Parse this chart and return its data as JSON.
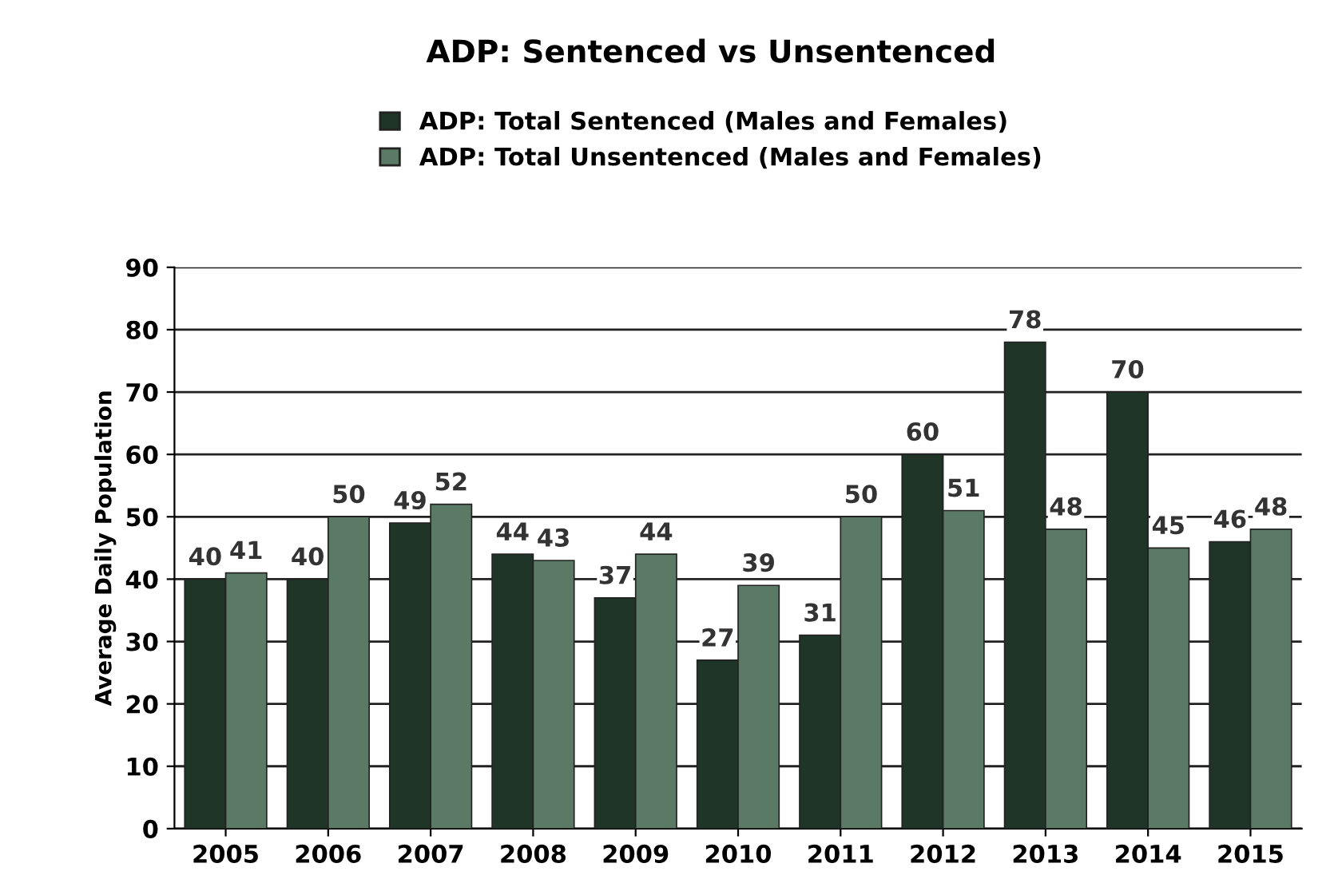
{
  "chart_data": {
    "type": "bar",
    "title": "ADP: Sentenced vs Unsentenced",
    "ylabel": "Average Daily Population",
    "categories": [
      "2005",
      "2006",
      "2007",
      "2008",
      "2009",
      "2010",
      "2011",
      "2012",
      "2013",
      "2014",
      "2015"
    ],
    "series": [
      {
        "name": "ADP: Total Sentenced (Males and Females)",
        "color": "#1e3528",
        "values": [
          40,
          40,
          49,
          44,
          37,
          27,
          31,
          60,
          78,
          70,
          46
        ]
      },
      {
        "name": "ADP: Total Unsentenced (Males and Females)",
        "color": "#5b7a66",
        "values": [
          41,
          50,
          52,
          43,
          44,
          39,
          50,
          51,
          48,
          45,
          48
        ]
      }
    ],
    "ylim": [
      0,
      90
    ],
    "yticks": [
      0,
      10,
      20,
      30,
      40,
      50,
      60,
      70,
      80,
      90
    ],
    "grid": "y",
    "legend": "top",
    "data_labels": true
  }
}
